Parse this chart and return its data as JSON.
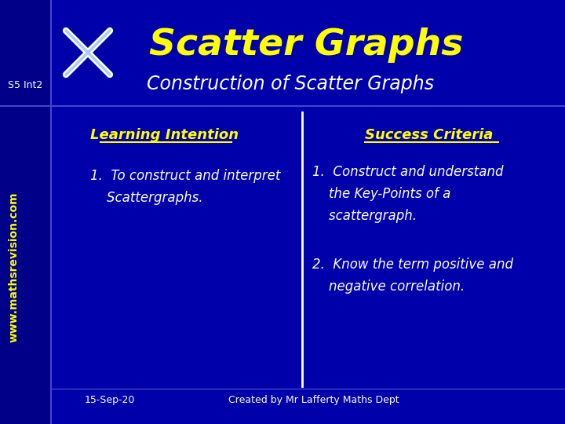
{
  "bg_color": "#0000AA",
  "left_strip_color": "#000088",
  "title_text": "Scatter Graphs",
  "title_color": "#FFFF00",
  "subtitle_text": "Construction of Scatter Graphs",
  "subtitle_color": "#FFFFFF",
  "s5_int2_text": "S5 Int2",
  "s5_int2_color": "#FFFFFF",
  "www_text": "www.mathsrevision.com",
  "www_color": "#FFFF00",
  "learning_title": "Learning Intention",
  "learning_title_color": "#FFFF00",
  "learning_item1": "1.  To construct and interpret\n    Scattergraphs.",
  "learning_item1_color": "#FFFFFF",
  "success_title": "Success Criteria",
  "success_title_color": "#FFFF00",
  "success_item1": "1.  Construct and understand\n    the Key-Points of a\n    scattergraph.",
  "success_item1_color": "#FFFFFF",
  "success_item2": "2.  Know the term positive and\n    negative correlation.",
  "success_item2_color": "#FFFFFF",
  "footer_date": "15-Sep-20",
  "footer_credit": "Created by Mr Lafferty Maths Dept",
  "footer_color": "#FFFFFF",
  "divider_color": "#FFFFFF",
  "line_color": "#4444CC"
}
